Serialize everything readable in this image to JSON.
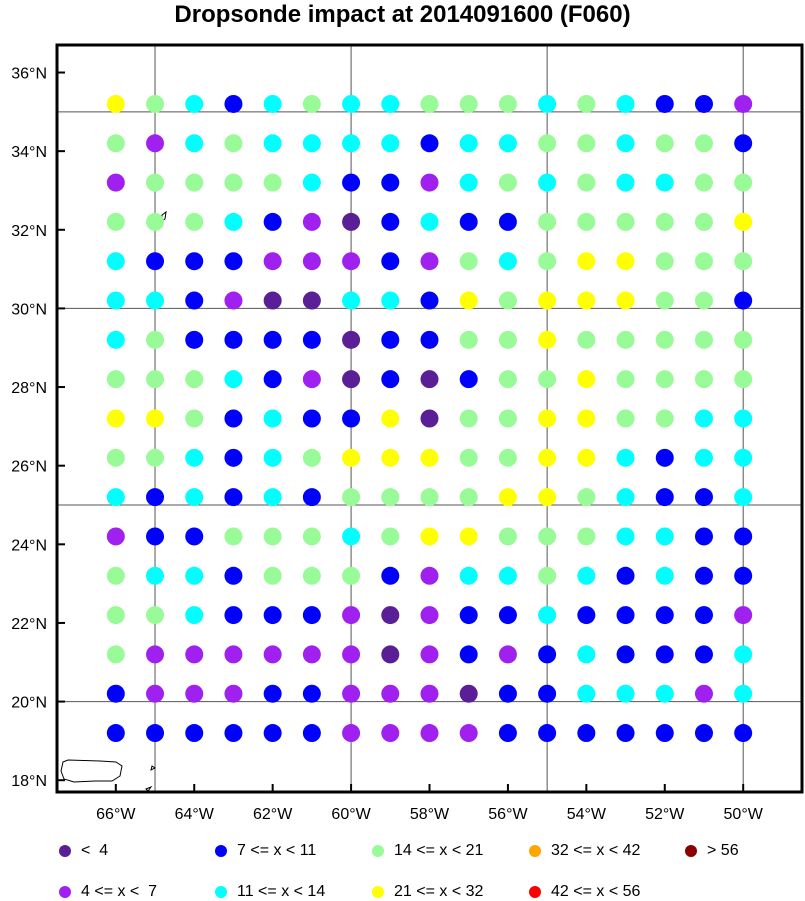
{
  "title": "Dropsonde impact at 2014091600 (F060)",
  "map": {
    "lon_range": [
      -67.5,
      -48.5
    ],
    "lat_range": [
      17.7,
      36.7
    ],
    "lon_ticks": [
      "66°W",
      "64°W",
      "62°W",
      "60°W",
      "58°W",
      "56°W",
      "54°W",
      "52°W",
      "50°W"
    ],
    "lon_tick_values": [
      -66,
      -64,
      -62,
      -60,
      -58,
      -56,
      -54,
      -52,
      -50
    ],
    "lat_ticks": [
      "18°N",
      "20°N",
      "22°N",
      "24°N",
      "26°N",
      "28°N",
      "30°N",
      "32°N",
      "34°N",
      "36°N"
    ],
    "lat_tick_values": [
      18,
      20,
      22,
      24,
      26,
      28,
      30,
      32,
      34,
      36
    ],
    "grid_lons": [
      -65,
      -60,
      -55,
      -50
    ],
    "grid_lats": [
      20,
      25,
      30,
      35
    ],
    "point_lons": [
      -66,
      -65,
      -64,
      -63,
      -62,
      -61,
      -60,
      -59,
      -58,
      -57,
      -56,
      -55,
      -54,
      -53,
      -52,
      -51,
      -50
    ],
    "point_lats": [
      35.2,
      34.2,
      33.2,
      32.2,
      31.2,
      30.2,
      29.2,
      28.2,
      27.2,
      26.2,
      25.2,
      24.2,
      23.2,
      22.2,
      21.2,
      20.2,
      19.2
    ],
    "category_rows_north_to_south": [
      "HGCBCGCCGGGCGCBBD",
      "GDCGCCCCBCCGGCGGB",
      "DGGGGCBBDCGCGCCGG",
      "GGGCBDABCBBGGGGGH",
      "CBBBDDDBDGCGHHGGG",
      "CCBDAACCBHGHHHGGB",
      "CGBBBBABBGGHGGGGG",
      "GGGCBDABABGGHGGGG",
      "HHGBCBBHAGGHHGGCC",
      "GGCBCGHHHGGHHCBCC",
      "CBCBCBGGGGHHGCBBC",
      "DBBGGGCGHHGGGCCBB",
      "GCCBGGGBDCCGCBCBB",
      "GGCBBBDADBBCBBBBD",
      "GDDDDDDADBDBCBBBC",
      "BDDDBBDDDABBCCCDC",
      "BBBBBBDDDDBBBBBBB"
    ]
  },
  "legend": [
    {
      "key": "A",
      "label": "<  4",
      "color": "#5a1e96"
    },
    {
      "key": "D",
      "label": "4 <= x <  7",
      "color": "#a020f0"
    },
    {
      "key": "B",
      "label": "7 <= x < 11",
      "color": "#0000ff"
    },
    {
      "key": "C",
      "label": "11 <= x < 14",
      "color": "#00ffff"
    },
    {
      "key": "G",
      "label": "14 <= x < 21",
      "color": "#98fb98"
    },
    {
      "key": "H",
      "label": "21 <= x < 32",
      "color": "#ffff00"
    },
    {
      "key": "O",
      "label": "32 <= x < 42",
      "color": "#ffa500"
    },
    {
      "key": "R",
      "label": "42 <= x < 56",
      "color": "#ff0000"
    },
    {
      "key": "M",
      "label": "> 56",
      "color": "#8b0000"
    }
  ]
}
